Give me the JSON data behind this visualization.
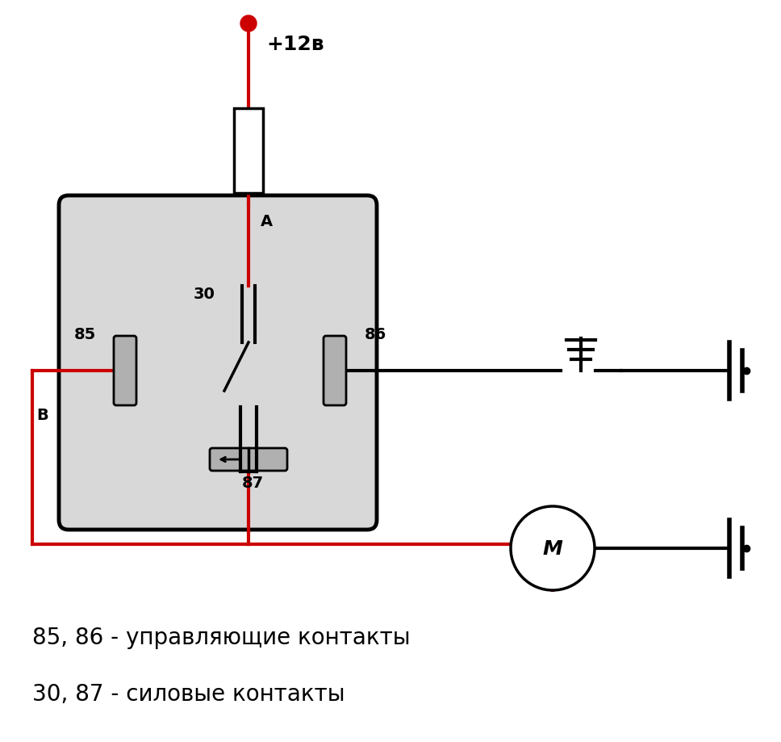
{
  "bg_color": "#ffffff",
  "black": "#000000",
  "red": "#cc0000",
  "relay_gray": "#d8d8d8",
  "text1": "85, 86 - управляющие контакты",
  "text2": "30, 87 - силовые контакты",
  "label_plus12v": "+12в",
  "label_A": "A",
  "label_B": "B",
  "label_30": "30",
  "label_85": "85",
  "label_86": "86",
  "label_87": "87",
  "label_M": "M"
}
